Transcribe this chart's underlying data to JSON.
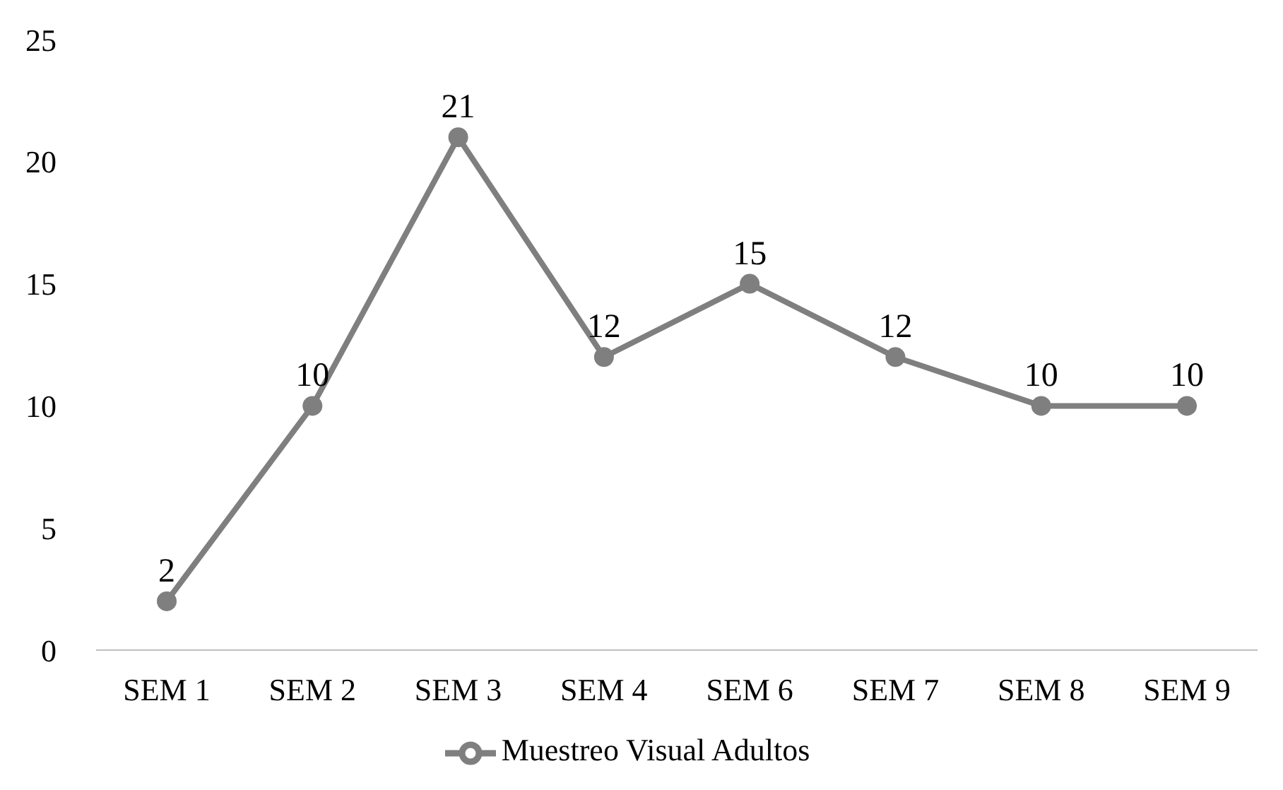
{
  "chart_data": {
    "type": "line",
    "categories": [
      "SEM 1",
      "SEM 2",
      "SEM 3",
      "SEM 4",
      "SEM 6",
      "SEM 7",
      "SEM 8",
      "SEM 9"
    ],
    "series": [
      {
        "name": "Muestreo Visual Adultos",
        "color": "#7f7f7f",
        "values": [
          2,
          10,
          21,
          12,
          15,
          12,
          10,
          10
        ]
      }
    ],
    "ylim": [
      0,
      25
    ],
    "yticks": [
      0,
      5,
      10,
      15,
      20,
      25
    ],
    "grid": false,
    "legend": "bottom",
    "marker": "circle",
    "line_style": "solid",
    "data_labels": true
  }
}
